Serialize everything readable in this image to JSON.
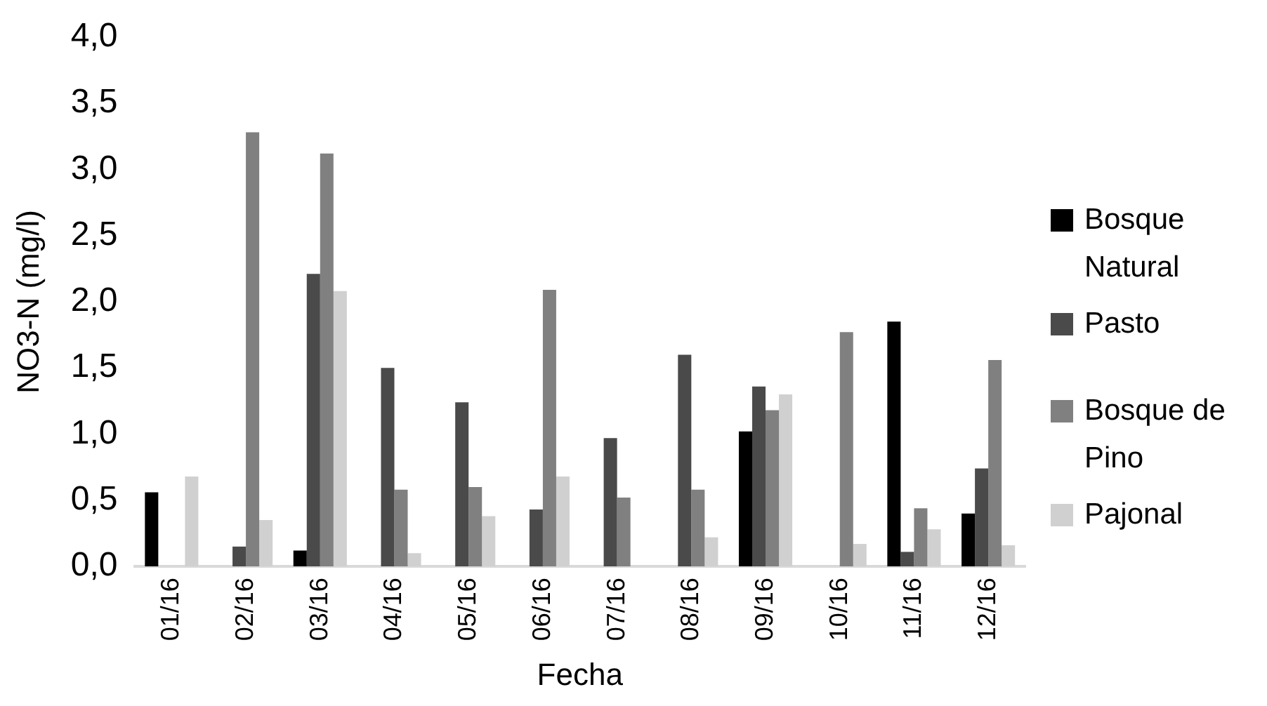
{
  "chart_data": {
    "type": "bar",
    "xlabel": "Fecha",
    "ylabel": "NO3-N (mg/l)",
    "categories": [
      "01/16",
      "02/16",
      "03/16",
      "04/16",
      "05/16",
      "06/16",
      "07/16",
      "08/16",
      "09/16",
      "10/16",
      "11/16",
      "12/16"
    ],
    "series": [
      {
        "name": "Bosque Natural",
        "color": "#000000",
        "values": [
          0.56,
          null,
          0.12,
          null,
          null,
          null,
          null,
          null,
          1.02,
          null,
          1.85,
          0.4
        ]
      },
      {
        "name": "Pasto",
        "color": "#4a4a4a",
        "values": [
          null,
          0.15,
          2.21,
          1.5,
          1.24,
          0.43,
          0.97,
          1.6,
          1.36,
          null,
          0.11,
          0.74
        ]
      },
      {
        "name": "Bosque de Pino",
        "color": "#808080",
        "values": [
          null,
          3.28,
          3.12,
          0.58,
          0.6,
          2.09,
          0.52,
          0.58,
          1.18,
          1.77,
          0.44,
          1.56
        ]
      },
      {
        "name": "Pajonal",
        "color": "#d0d0d0",
        "values": [
          0.68,
          0.35,
          2.08,
          0.1,
          0.38,
          0.68,
          null,
          0.22,
          1.3,
          0.17,
          0.28,
          0.16
        ]
      }
    ],
    "ylim": [
      0,
      4
    ],
    "yticks": [
      {
        "value": 0,
        "label": "0,0"
      },
      {
        "value": 0.5,
        "label": "0,5"
      },
      {
        "value": 1,
        "label": "1,0"
      },
      {
        "value": 1.5,
        "label": "1,5"
      },
      {
        "value": 2,
        "label": "2,0"
      },
      {
        "value": 2.5,
        "label": "2,5"
      },
      {
        "value": 3,
        "label": "3,0"
      },
      {
        "value": 3.5,
        "label": "3,5"
      },
      {
        "value": 4,
        "label": "4,0"
      }
    ],
    "grid": false,
    "legend": "right"
  }
}
